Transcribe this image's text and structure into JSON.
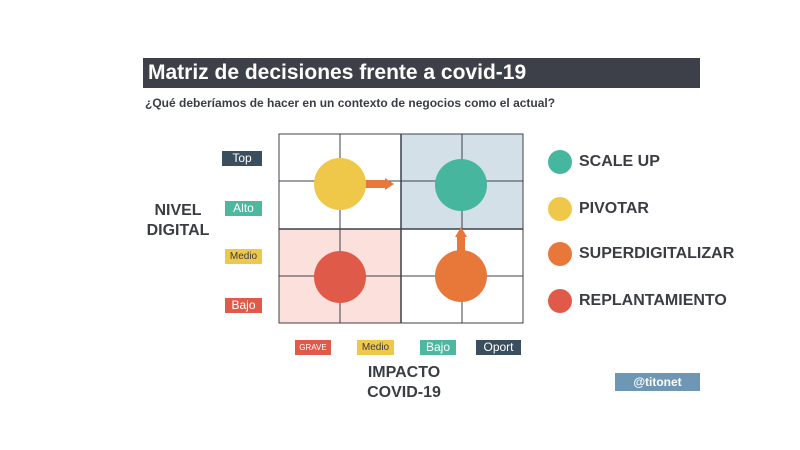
{
  "title": "Matriz de decisiones frente a covid-19",
  "subtitle": "¿Qué deberíamos de hacer en un contexto de negocios como el actual?",
  "y_axis": {
    "title_line1": "NIVEL",
    "title_line2": "DIGITAL",
    "levels": [
      {
        "label": "Top",
        "color": "#3a4e5e"
      },
      {
        "label": "Alto",
        "color": "#4cb8a0"
      },
      {
        "label": "Medio",
        "color": "#efc84a"
      },
      {
        "label": "Bajo",
        "color": "#e05a4a"
      }
    ]
  },
  "x_axis": {
    "title_line1": "IMPACTO",
    "title_line2": "COVID-19",
    "levels": [
      {
        "label": "GRAVE",
        "color": "#e05a4a"
      },
      {
        "label": "Medio",
        "color": "#efc84a"
      },
      {
        "label": "Bajo",
        "color": "#4cb8a0"
      },
      {
        "label": "Oport",
        "color": "#3a4e5e"
      }
    ]
  },
  "quadrants": {
    "top_right_fill": "#d3e0e8",
    "bottom_left_fill": "#fbe0dc"
  },
  "legend": [
    {
      "label": "SCALE UP",
      "color": "#46b69e"
    },
    {
      "label": "PIVOTAR",
      "color": "#efc84a"
    },
    {
      "label": "SUPERDIGITALIZAR",
      "color": "#e8773a"
    },
    {
      "label": "REPLANTAMIENTO",
      "color": "#e05a4a"
    }
  ],
  "handle": "@titonet"
}
